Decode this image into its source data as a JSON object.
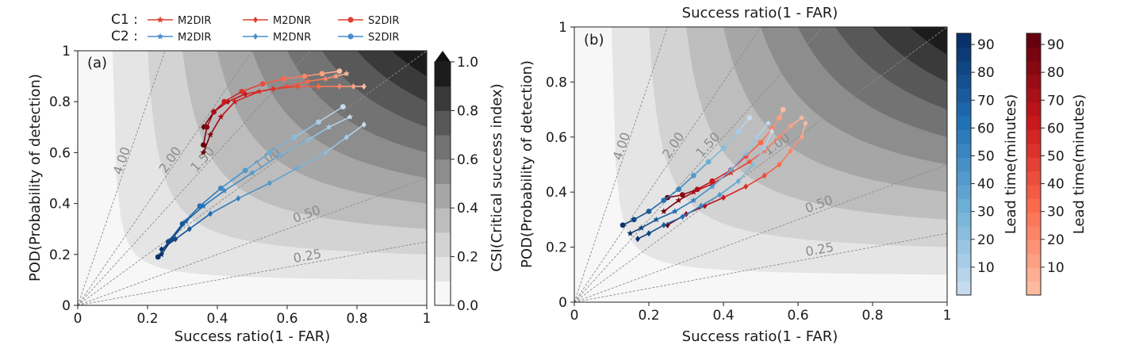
{
  "colors": {
    "c1": "#d32f2f",
    "c2": "#2f7fc1",
    "bias_line": "#8c8c8c"
  },
  "legend": {
    "rows": [
      {
        "label": "C1 :",
        "color": "#e0412f"
      },
      {
        "label": "C2 :",
        "color": "#4d8fca"
      }
    ],
    "entries": [
      {
        "name": "M2DIR",
        "marker": "star"
      },
      {
        "name": "M2DNR",
        "marker": "diamond"
      },
      {
        "name": "S2DIR",
        "marker": "circle"
      }
    ]
  },
  "chart_data": [
    {
      "panel": "(a)",
      "type": "performance diagram",
      "title": "",
      "xlabel": "Success ratio(1 - FAR)",
      "ylabel": "POD(Probability of detection)",
      "xlim": [
        0,
        1
      ],
      "ylim": [
        0,
        1
      ],
      "x_ticks": [
        "0",
        "0.2",
        "0.4",
        "0.6",
        "0.8",
        "1"
      ],
      "y_ticks": [
        "0",
        "0.2",
        "0.4",
        "0.6",
        "0.8",
        "1"
      ],
      "csi_levels": [
        0.1,
        0.2,
        0.3,
        0.4,
        0.5,
        0.6,
        0.7,
        0.8,
        0.9
      ],
      "bias_lines": [
        {
          "label": "4.00",
          "value": 4.0
        },
        {
          "label": "2.00",
          "value": 2.0
        },
        {
          "label": "1.50",
          "value": 1.5
        },
        {
          "label": "1.00",
          "value": 1.0
        },
        {
          "label": "0.50",
          "value": 0.5
        },
        {
          "label": "0.25",
          "value": 0.25
        }
      ],
      "series": [
        {
          "name": "M2DIR",
          "group": "C1",
          "marker": "star",
          "x": [
            0.36,
            0.38,
            0.41,
            0.45,
            0.52,
            0.6,
            0.66,
            0.71,
            0.74,
            0.77
          ],
          "y": [
            0.6,
            0.67,
            0.74,
            0.8,
            0.84,
            0.86,
            0.88,
            0.89,
            0.9,
            0.91
          ]
        },
        {
          "name": "M2DNR",
          "group": "C1",
          "marker": "diamond",
          "x": [
            0.36,
            0.39,
            0.43,
            0.48,
            0.56,
            0.63,
            0.69,
            0.75,
            0.79,
            0.82
          ],
          "y": [
            0.7,
            0.76,
            0.8,
            0.83,
            0.85,
            0.86,
            0.86,
            0.86,
            0.86,
            0.86
          ]
        },
        {
          "name": "S2DIR",
          "group": "C1",
          "marker": "circle",
          "x": [
            0.36,
            0.37,
            0.39,
            0.42,
            0.47,
            0.53,
            0.59,
            0.65,
            0.7,
            0.75
          ],
          "y": [
            0.63,
            0.7,
            0.76,
            0.8,
            0.84,
            0.87,
            0.89,
            0.9,
            0.91,
            0.92
          ]
        },
        {
          "name": "M2DIR",
          "group": "C2",
          "marker": "star",
          "x": [
            0.24,
            0.27,
            0.31,
            0.36,
            0.42,
            0.5,
            0.58,
            0.66,
            0.72,
            0.78
          ],
          "y": [
            0.2,
            0.26,
            0.33,
            0.39,
            0.45,
            0.52,
            0.59,
            0.65,
            0.7,
            0.74
          ]
        },
        {
          "name": "M2DNR",
          "group": "C2",
          "marker": "diamond",
          "x": [
            0.24,
            0.28,
            0.32,
            0.38,
            0.46,
            0.55,
            0.63,
            0.71,
            0.77,
            0.82
          ],
          "y": [
            0.22,
            0.26,
            0.3,
            0.36,
            0.42,
            0.48,
            0.54,
            0.6,
            0.66,
            0.71
          ]
        },
        {
          "name": "S2DIR",
          "group": "C2",
          "marker": "circle",
          "x": [
            0.23,
            0.26,
            0.3,
            0.35,
            0.41,
            0.48,
            0.55,
            0.62,
            0.69,
            0.76
          ],
          "y": [
            0.19,
            0.25,
            0.32,
            0.39,
            0.46,
            0.53,
            0.6,
            0.66,
            0.72,
            0.78
          ]
        }
      ],
      "colorbar": {
        "label": "CSI(Critical success index)",
        "ticks": [
          "0.0",
          "0.2",
          "0.4",
          "0.6",
          "0.8",
          "1.0"
        ],
        "range": [
          0,
          1
        ],
        "extend": "max"
      }
    },
    {
      "panel": "(b)",
      "type": "performance diagram",
      "title": "Success ratio(1 - FAR)",
      "xlabel": "Success ratio(1 - FAR)",
      "ylabel": "POD(Probability of detection)",
      "xlim": [
        0,
        1
      ],
      "ylim": [
        0,
        1
      ],
      "x_ticks": [
        "0",
        "0.2",
        "0.4",
        "0.6",
        "0.8",
        "1"
      ],
      "y_ticks": [
        "0",
        "0.2",
        "0.4",
        "0.6",
        "0.8",
        "1"
      ],
      "csi_levels": [
        0.1,
        0.2,
        0.3,
        0.4,
        0.5,
        0.6,
        0.7,
        0.8,
        0.9
      ],
      "bias_lines": [
        {
          "label": "4.00",
          "value": 4.0
        },
        {
          "label": "2.00",
          "value": 2.0
        },
        {
          "label": "1.50",
          "value": 1.5
        },
        {
          "label": "1.00",
          "value": 1.0
        },
        {
          "label": "0.50",
          "value": 0.5
        },
        {
          "label": "0.25",
          "value": 0.25
        }
      ],
      "series": [
        {
          "name": "M2DIR",
          "group": "C1",
          "marker": "star",
          "x": [
            0.24,
            0.28,
            0.32,
            0.37,
            0.42,
            0.47,
            0.51,
            0.55,
            0.58,
            0.61
          ],
          "y": [
            0.33,
            0.37,
            0.4,
            0.43,
            0.47,
            0.51,
            0.55,
            0.6,
            0.64,
            0.67
          ]
        },
        {
          "name": "M2DNR",
          "group": "C1",
          "marker": "diamond",
          "x": [
            0.25,
            0.3,
            0.35,
            0.4,
            0.46,
            0.51,
            0.55,
            0.58,
            0.61,
            0.62
          ],
          "y": [
            0.28,
            0.32,
            0.35,
            0.38,
            0.42,
            0.46,
            0.5,
            0.55,
            0.6,
            0.65
          ]
        },
        {
          "name": "S2DIR",
          "group": "C1",
          "marker": "circle",
          "x": [
            0.25,
            0.29,
            0.33,
            0.37,
            0.42,
            0.46,
            0.5,
            0.53,
            0.55,
            0.56
          ],
          "y": [
            0.38,
            0.39,
            0.41,
            0.44,
            0.48,
            0.53,
            0.58,
            0.63,
            0.67,
            0.7
          ]
        },
        {
          "name": "M2DIR",
          "group": "C2",
          "marker": "star",
          "x": [
            0.15,
            0.18,
            0.22,
            0.27,
            0.32,
            0.37,
            0.42,
            0.46,
            0.49,
            0.52
          ],
          "y": [
            0.25,
            0.27,
            0.3,
            0.33,
            0.37,
            0.42,
            0.48,
            0.54,
            0.6,
            0.65
          ]
        },
        {
          "name": "M2DNR",
          "group": "C2",
          "marker": "diamond",
          "x": [
            0.17,
            0.2,
            0.24,
            0.29,
            0.34,
            0.39,
            0.44,
            0.48,
            0.51,
            0.53
          ],
          "y": [
            0.23,
            0.25,
            0.28,
            0.31,
            0.35,
            0.39,
            0.44,
            0.5,
            0.56,
            0.62
          ]
        },
        {
          "name": "S2DIR",
          "group": "C2",
          "marker": "circle",
          "x": [
            0.13,
            0.16,
            0.2,
            0.24,
            0.28,
            0.32,
            0.36,
            0.4,
            0.44,
            0.47
          ],
          "y": [
            0.28,
            0.3,
            0.33,
            0.37,
            0.41,
            0.46,
            0.51,
            0.56,
            0.62,
            0.67
          ]
        }
      ],
      "colorbars": [
        {
          "label": "Lead time(minutes)",
          "colormap": "Blues",
          "ticks": [
            "10",
            "20",
            "30",
            "40",
            "50",
            "60",
            "70",
            "80",
            "90"
          ],
          "range": [
            0,
            94
          ]
        },
        {
          "label": "Lead time(minutes)",
          "colormap": "Reds",
          "ticks": [
            "10",
            "20",
            "30",
            "40",
            "50",
            "60",
            "70",
            "80",
            "90"
          ],
          "range": [
            0,
            94
          ]
        }
      ]
    }
  ]
}
